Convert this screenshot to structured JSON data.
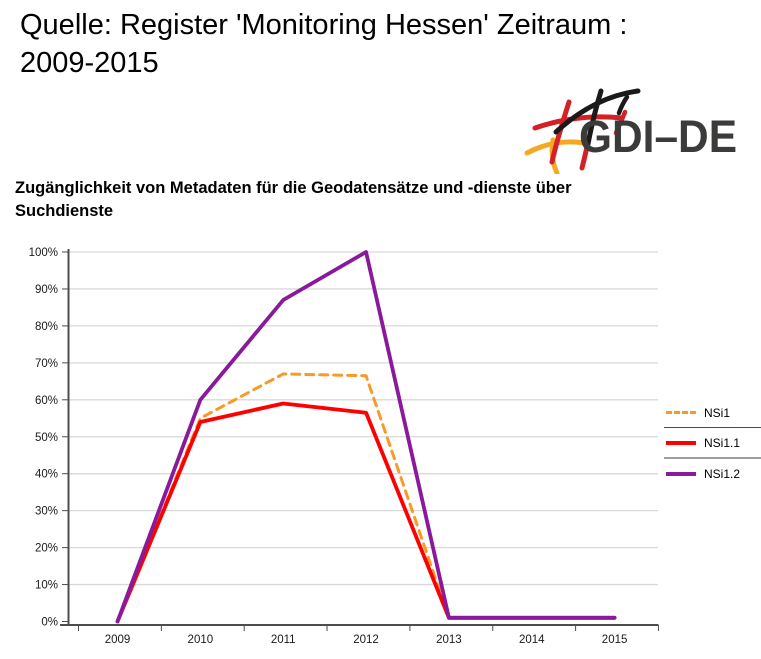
{
  "header": {
    "title_line1": "Quelle: Register 'Monitoring Hessen' Zeitraum :",
    "title_line2": "2009-2015"
  },
  "logo": {
    "text": "GDI–DE",
    "colors": {
      "black": "#1a1a1a",
      "red": "#d42127",
      "gold": "#f7a823",
      "text": "#3b3b3a"
    }
  },
  "chart": {
    "title_line1": "Zugänglichkeit von Metadaten für die Geodatensätze und -dienste über",
    "title_line2": "Suchdienste"
  },
  "chart_data": {
    "type": "line",
    "title": "Zugänglichkeit von Metadaten für die Geodatensätze und -dienste über Suchdienste",
    "categories": [
      "2009",
      "2010",
      "2011",
      "2012",
      "2013",
      "2014",
      "2015"
    ],
    "series": [
      {
        "name": "NSi1",
        "style": "dashed",
        "color": "#f79a28",
        "values": [
          0,
          55,
          67,
          66.5,
          1,
          1,
          1
        ]
      },
      {
        "name": "NSi1.1",
        "style": "solid",
        "color": "#fe0000",
        "values": [
          0,
          54,
          59,
          56.5,
          1,
          1,
          1
        ]
      },
      {
        "name": "NSi1.2",
        "style": "solid",
        "color": "#8a1a9c",
        "values": [
          0,
          60,
          87,
          100,
          1,
          1,
          1
        ]
      }
    ],
    "ylim": [
      0,
      100
    ],
    "ytick_step": 10,
    "ytick_labels": [
      "0%",
      "10%",
      "20%",
      "30%",
      "40%",
      "50%",
      "60%",
      "70%",
      "80%",
      "90%",
      "100%"
    ],
    "grid": "horizontal",
    "legend_position": "right-middle",
    "colors": {
      "gridline": "#d9d9d9",
      "axis": "#4d4d4d",
      "tick_label": "#1a1a1a"
    }
  }
}
